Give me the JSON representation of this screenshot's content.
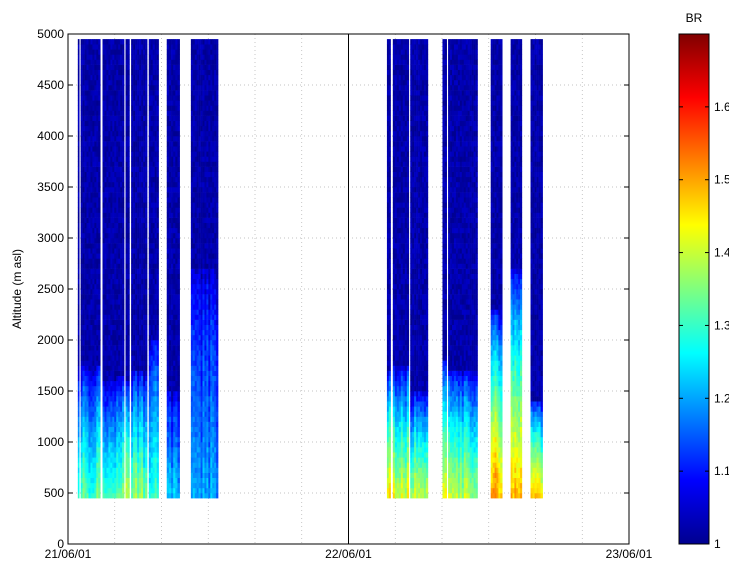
{
  "chart_data": {
    "type": "heatmap",
    "title": "",
    "ylabel": "Altitude (m asl)",
    "xlabel": "",
    "x_tick_labels": [
      "21/06/01",
      "22/06/01",
      "23/06/01"
    ],
    "x_range": [
      "21/06/01",
      "23/06/01"
    ],
    "y_ticks": [
      0,
      500,
      1000,
      1500,
      2000,
      2500,
      3000,
      3500,
      4000,
      4500,
      5000
    ],
    "ylim": [
      0,
      5000
    ],
    "grid": "dotted",
    "day_divider": "22/06/01",
    "data_altitude_range": [
      450,
      4950
    ],
    "colorbar": {
      "label": "BR",
      "ticks": [
        1,
        1.1,
        1.2,
        1.3,
        1.4,
        1.5,
        1.6
      ],
      "range": [
        1,
        1.7
      ],
      "colormap": "jet"
    },
    "segments": [
      {
        "start_day": 0.035,
        "end_day": 0.04,
        "peak_br": 1.3,
        "boundary_layer_top_m": 1700
      },
      {
        "start_day": 0.045,
        "end_day": 0.115,
        "peak_br": 1.32,
        "boundary_layer_top_m": 1750
      },
      {
        "start_day": 0.123,
        "end_day": 0.2,
        "peak_br": 1.33,
        "boundary_layer_top_m": 1650
      },
      {
        "start_day": 0.205,
        "end_day": 0.219,
        "peak_br": 1.4,
        "boundary_layer_top_m": 1600
      },
      {
        "start_day": 0.225,
        "end_day": 0.282,
        "peak_br": 1.35,
        "boundary_layer_top_m": 1700
      },
      {
        "start_day": 0.288,
        "end_day": 0.323,
        "peak_br": 1.28,
        "boundary_layer_top_m": 2000
      },
      {
        "start_day": 0.352,
        "end_day": 0.398,
        "peak_br": 1.22,
        "boundary_layer_top_m": 1500
      },
      {
        "start_day": 0.438,
        "end_day": 0.535,
        "peak_br": 1.2,
        "boundary_layer_top_m": 2700
      },
      {
        "start_day": 1.137,
        "end_day": 1.15,
        "peak_br": 1.45,
        "boundary_layer_top_m": 1700
      },
      {
        "start_day": 1.158,
        "end_day": 1.215,
        "peak_br": 1.42,
        "boundary_layer_top_m": 1750
      },
      {
        "start_day": 1.22,
        "end_day": 1.283,
        "peak_br": 1.4,
        "boundary_layer_top_m": 1500
      },
      {
        "start_day": 1.335,
        "end_day": 1.35,
        "peak_br": 1.4,
        "boundary_layer_top_m": 1800
      },
      {
        "start_day": 1.355,
        "end_day": 1.46,
        "peak_br": 1.38,
        "boundary_layer_top_m": 1700
      },
      {
        "start_day": 1.507,
        "end_day": 1.548,
        "peak_br": 1.5,
        "boundary_layer_top_m": 2300
      },
      {
        "start_day": 1.578,
        "end_day": 1.618,
        "peak_br": 1.48,
        "boundary_layer_top_m": 2700
      },
      {
        "start_day": 1.649,
        "end_day": 1.692,
        "peak_br": 1.45,
        "boundary_layer_top_m": 1400
      }
    ]
  }
}
